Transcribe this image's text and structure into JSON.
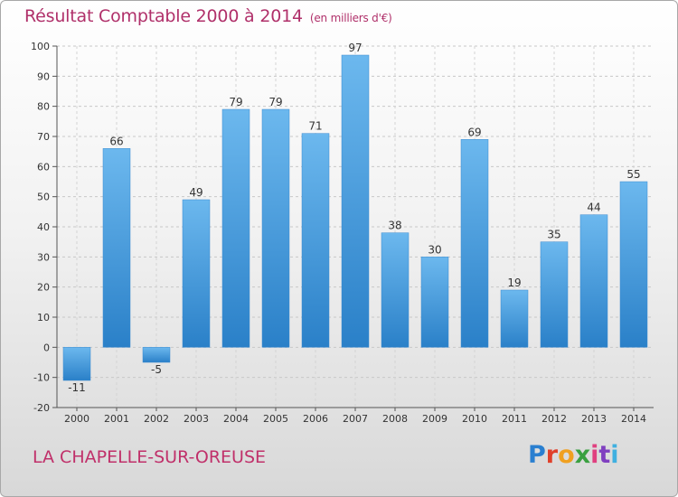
{
  "header": {
    "title": "Résultat Comptable 2000 à 2014",
    "subtitle": "(en milliers d'€)"
  },
  "footer": {
    "commune": "LA CHAPELLE-SUR-OREUSE",
    "logo_letters": [
      "P",
      "r",
      "o",
      "x",
      "i",
      "t",
      "i"
    ],
    "logo_colors": [
      "#2a7fd0",
      "#e0402a",
      "#f0a020",
      "#3aa040",
      "#e04080",
      "#8040c0",
      "#40b0e0"
    ]
  },
  "chart_data": {
    "type": "bar",
    "title": "Résultat Comptable 2000 à 2014",
    "subtitle": "(en milliers d'€)",
    "categories": [
      "2000",
      "2001",
      "2002",
      "2003",
      "2004",
      "2005",
      "2006",
      "2007",
      "2008",
      "2009",
      "2010",
      "2011",
      "2012",
      "2013",
      "2014"
    ],
    "values": [
      -11,
      66,
      -5,
      49,
      79,
      79,
      71,
      97,
      38,
      30,
      69,
      19,
      35,
      44,
      55
    ],
    "labels": [
      "-11",
      "66",
      "-5",
      "49",
      "79",
      "79",
      "71",
      "97",
      "38",
      "30",
      "69",
      "19",
      "35",
      "44",
      "55"
    ],
    "yticks": [
      "-20",
      "-10",
      "0",
      "10",
      "20",
      "30",
      "40",
      "50",
      "60",
      "70",
      "80",
      "90",
      "100"
    ],
    "ylim": [
      -20,
      100
    ],
    "grid": true,
    "bar_color_light": "#6cb8ee",
    "bar_color_dark": "#2a80c8"
  }
}
